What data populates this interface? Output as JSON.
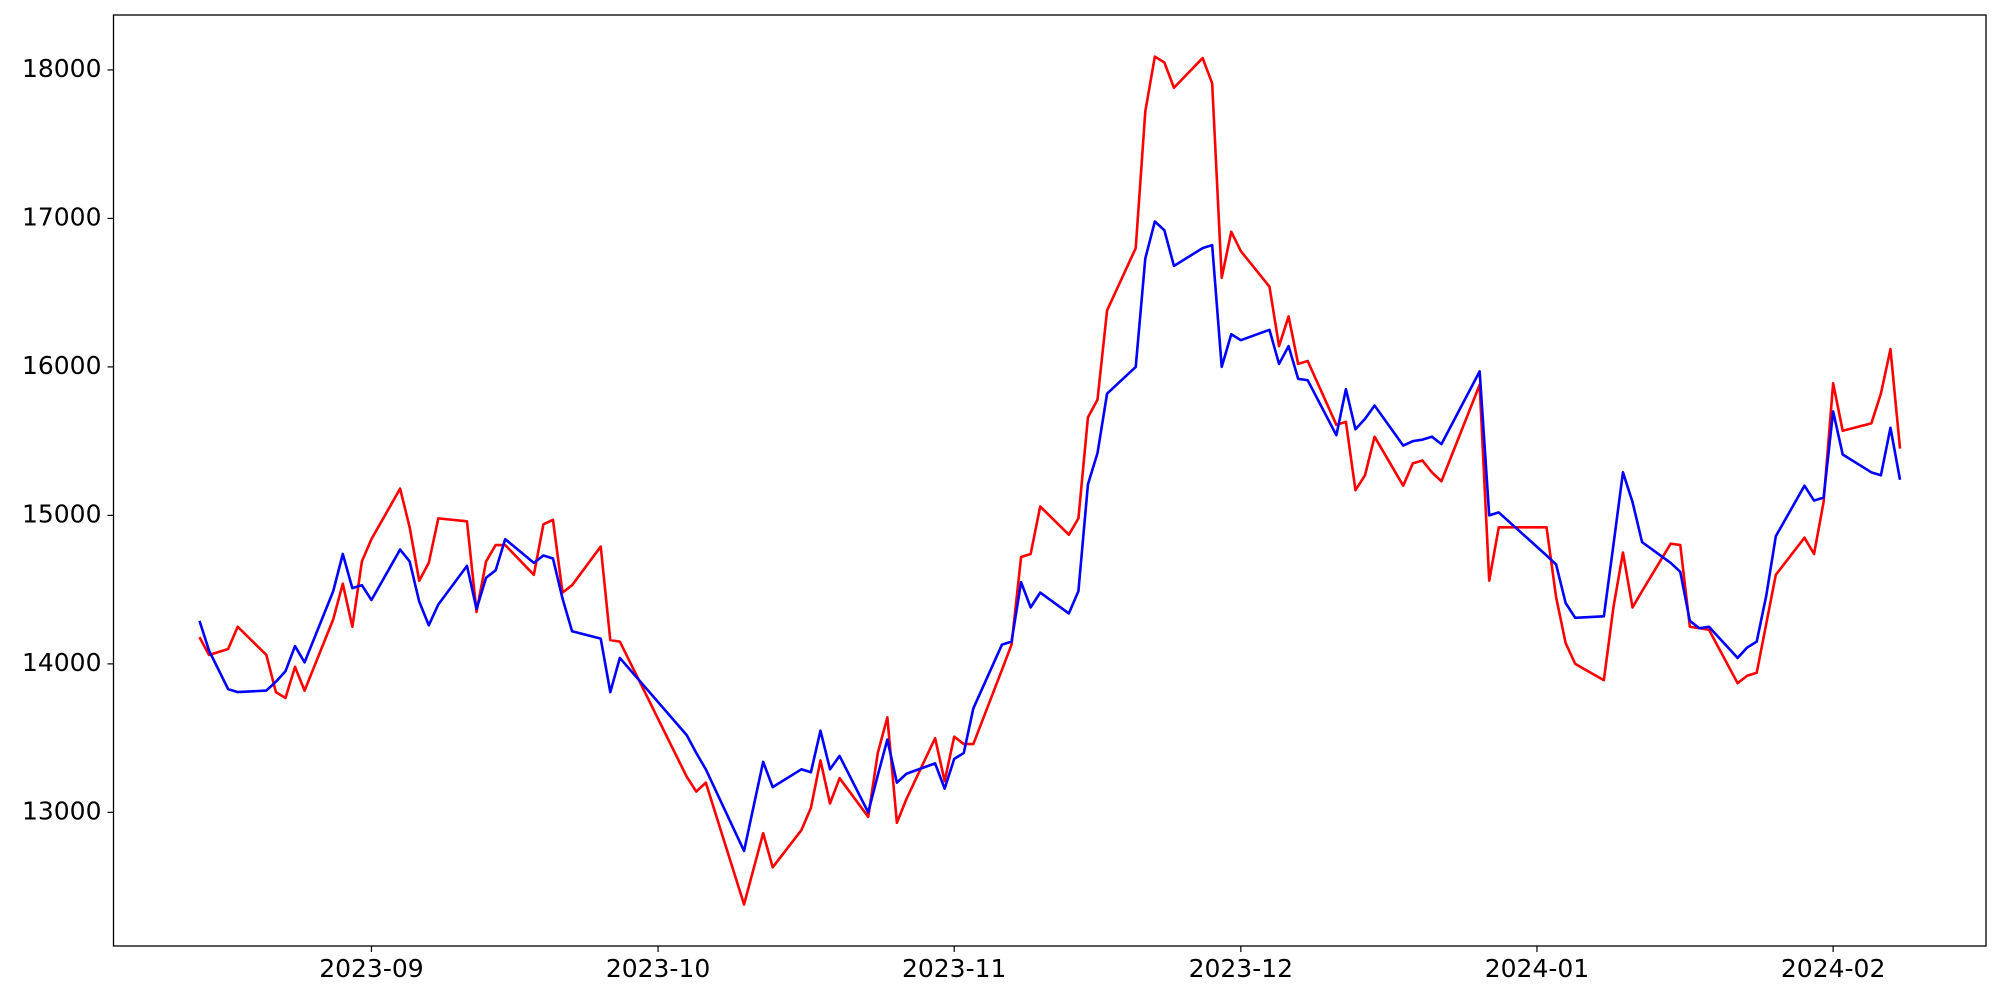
{
  "chart_data": {
    "type": "line",
    "x": [
      "2023-08-14",
      "2023-08-15",
      "2023-08-17",
      "2023-08-18",
      "2023-08-21",
      "2023-08-22",
      "2023-08-23",
      "2023-08-24",
      "2023-08-25",
      "2023-08-28",
      "2023-08-29",
      "2023-08-30",
      "2023-08-31",
      "2023-09-01",
      "2023-09-04",
      "2023-09-05",
      "2023-09-06",
      "2023-09-07",
      "2023-09-08",
      "2023-09-11",
      "2023-09-12",
      "2023-09-13",
      "2023-09-14",
      "2023-09-15",
      "2023-09-18",
      "2023-09-19",
      "2023-09-20",
      "2023-09-21",
      "2023-09-22",
      "2023-09-25",
      "2023-09-26",
      "2023-09-27",
      "2023-10-04",
      "2023-10-05",
      "2023-10-06",
      "2023-10-10",
      "2023-10-12",
      "2023-10-13",
      "2023-10-16",
      "2023-10-17",
      "2023-10-18",
      "2023-10-19",
      "2023-10-20",
      "2023-10-23",
      "2023-10-24",
      "2023-10-25",
      "2023-10-26",
      "2023-10-27",
      "2023-10-30",
      "2023-10-31",
      "2023-11-01",
      "2023-11-02",
      "2023-11-03",
      "2023-11-06",
      "2023-11-07",
      "2023-11-08",
      "2023-11-09",
      "2023-11-10",
      "2023-11-13",
      "2023-11-14",
      "2023-11-15",
      "2023-11-16",
      "2023-11-17",
      "2023-11-20",
      "2023-11-21",
      "2023-11-22",
      "2023-11-23",
      "2023-11-24",
      "2023-11-27",
      "2023-11-28",
      "2023-11-29",
      "2023-11-30",
      "2023-12-01",
      "2023-12-04",
      "2023-12-05",
      "2023-12-06",
      "2023-12-07",
      "2023-12-08",
      "2023-12-11",
      "2023-12-12",
      "2023-12-13",
      "2023-12-14",
      "2023-12-15",
      "2023-12-18",
      "2023-12-19",
      "2023-12-20",
      "2023-12-21",
      "2023-12-22",
      "2023-12-26",
      "2023-12-27",
      "2023-12-28",
      "2024-01-02",
      "2024-01-03",
      "2024-01-04",
      "2024-01-05",
      "2024-01-08",
      "2024-01-09",
      "2024-01-10",
      "2024-01-11",
      "2024-01-12",
      "2024-01-15",
      "2024-01-16",
      "2024-01-17",
      "2024-01-18",
      "2024-01-19",
      "2024-01-22",
      "2024-01-23",
      "2024-01-24",
      "2024-01-25",
      "2024-01-26",
      "2024-01-29",
      "2024-01-30",
      "2024-01-31",
      "2024-02-01",
      "2024-02-02",
      "2024-02-05",
      "2024-02-06",
      "2024-02-07",
      "2024-02-08"
    ],
    "series": [
      {
        "color": "#ff0000",
        "values": [
          14180,
          14060,
          14100,
          14250,
          14060,
          13810,
          13770,
          13980,
          13820,
          14300,
          14540,
          14250,
          14690,
          14840,
          15180,
          14920,
          14560,
          14680,
          14980,
          14960,
          14350,
          14690,
          14800,
          14800,
          14600,
          14940,
          14970,
          14480,
          14530,
          14790,
          14160,
          14150,
          13240,
          13140,
          13200,
          12380,
          12860,
          12630,
          12880,
          13030,
          13350,
          13060,
          13230,
          12970,
          13400,
          13640,
          12930,
          13090,
          13500,
          13210,
          13510,
          13460,
          13460,
          13960,
          14130,
          14720,
          14740,
          15060,
          14870,
          14980,
          15660,
          15780,
          16380,
          16800,
          17720,
          18090,
          18050,
          17880,
          18080,
          17910,
          16600,
          16910,
          16780,
          16540,
          16140,
          16340,
          16020,
          16040,
          15610,
          15630,
          15170,
          15270,
          15530,
          15200,
          15350,
          15370,
          15290,
          15230,
          15880,
          14560,
          14920,
          14920,
          14450,
          14140,
          14000,
          13890,
          14380,
          14750,
          14380,
          14490,
          14810,
          14800,
          14250,
          14240,
          14230,
          13870,
          13920,
          13940,
          14270,
          14600,
          14850,
          14740,
          15090,
          15890,
          15570,
          15620,
          15820,
          16120,
          15450
        ]
      },
      {
        "color": "#0000ff",
        "values": [
          14290,
          14090,
          13830,
          13810,
          13820,
          13880,
          13950,
          14120,
          14010,
          14490,
          14740,
          14510,
          14530,
          14430,
          14770,
          14690,
          14420,
          14260,
          14400,
          14660,
          14370,
          14580,
          14630,
          14840,
          14680,
          14730,
          14710,
          14440,
          14220,
          14170,
          13810,
          14040,
          13520,
          13400,
          13290,
          12740,
          13340,
          13170,
          13290,
          13270,
          13550,
          13290,
          13380,
          13000,
          13250,
          13490,
          13200,
          13260,
          13330,
          13160,
          13360,
          13400,
          13700,
          14130,
          14150,
          14550,
          14380,
          14480,
          14340,
          14490,
          15210,
          15420,
          15820,
          16000,
          16730,
          16980,
          16920,
          16680,
          16800,
          16820,
          16000,
          16220,
          16180,
          16250,
          16020,
          16140,
          15920,
          15910,
          15540,
          15850,
          15580,
          15650,
          15740,
          15470,
          15500,
          15510,
          15530,
          15480,
          15970,
          15000,
          15020,
          14730,
          14670,
          14410,
          14310,
          14320,
          14800,
          15290,
          15090,
          14820,
          14680,
          14620,
          14290,
          14240,
          14250,
          14040,
          14110,
          14150,
          14460,
          14860,
          15200,
          15100,
          15120,
          15700,
          15410,
          15290,
          15270,
          15590,
          15240
        ]
      }
    ],
    "xlim": [
      "2023-08-05",
      "2024-02-17"
    ],
    "xticks": [
      {
        "value": "2023-09-01",
        "label": "2023-09"
      },
      {
        "value": "2023-10-01",
        "label": "2023-10"
      },
      {
        "value": "2023-11-01",
        "label": "2023-11"
      },
      {
        "value": "2023-12-01",
        "label": "2023-12"
      },
      {
        "value": "2024-01-01",
        "label": "2024-01"
      },
      {
        "value": "2024-02-01",
        "label": "2024-02"
      }
    ],
    "ylim": [
      12100,
      18370
    ],
    "yticks": [
      13000,
      14000,
      15000,
      16000,
      17000,
      18000
    ],
    "grid": false
  }
}
